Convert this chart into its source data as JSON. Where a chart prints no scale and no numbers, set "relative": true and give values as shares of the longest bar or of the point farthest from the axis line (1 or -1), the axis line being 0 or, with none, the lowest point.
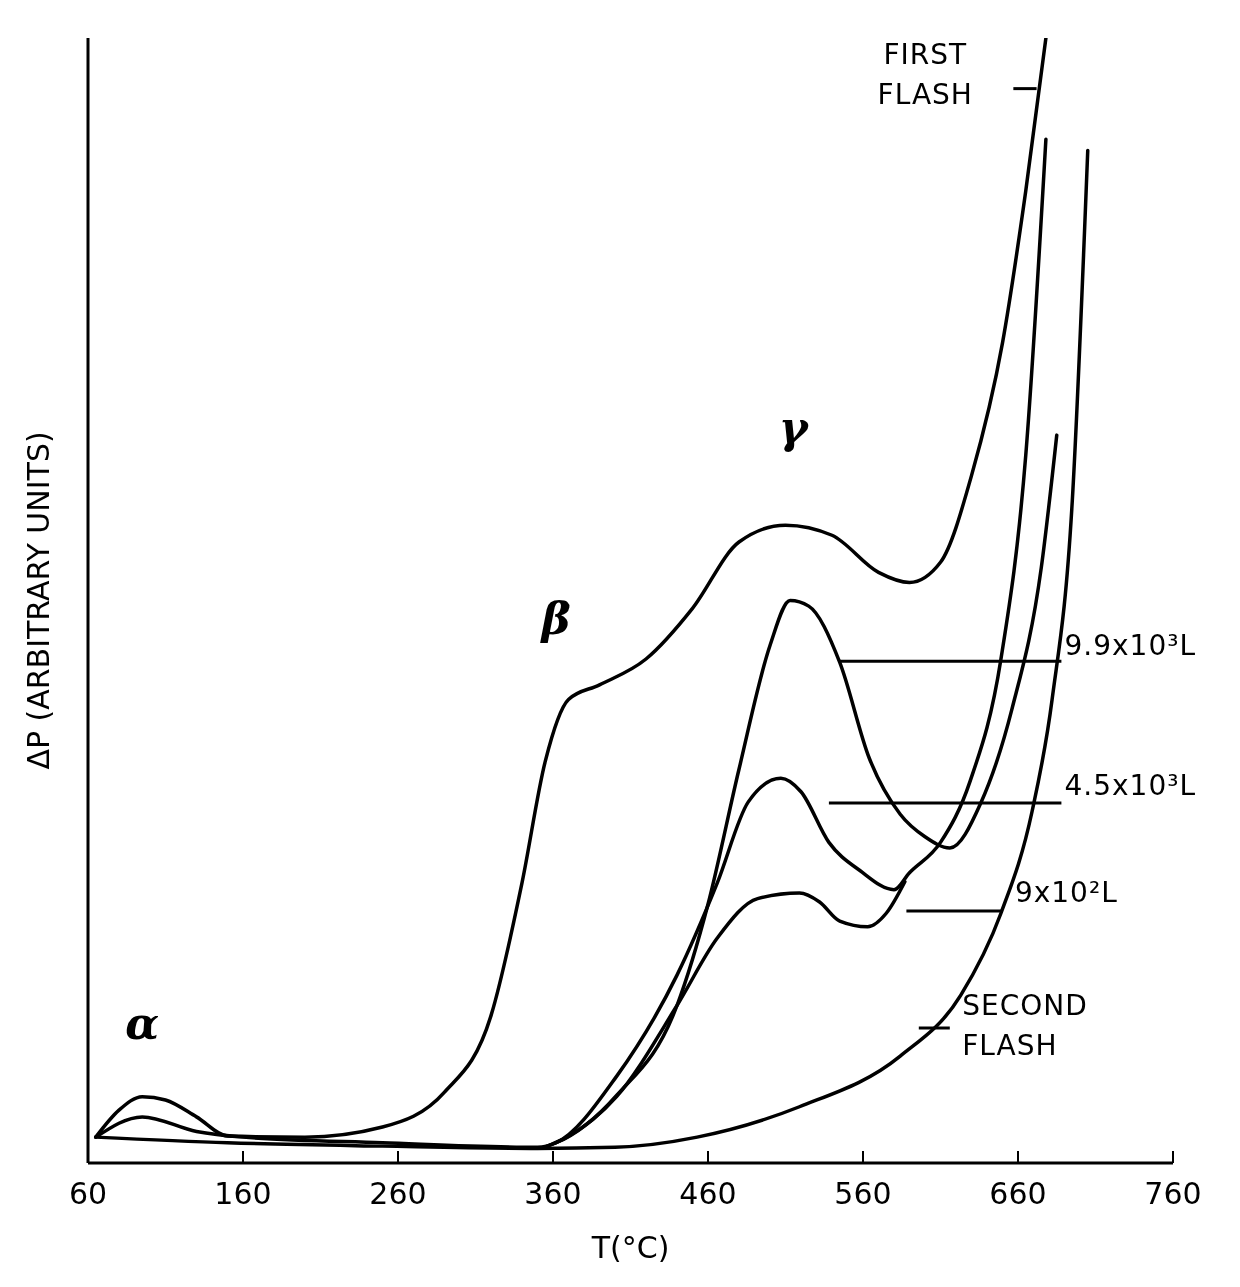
{
  "chart_data": {
    "type": "line",
    "relative": true,
    "xlabel": "T(°C)",
    "ylabel": "ΔP (ARBITRARY UNITS)",
    "xlim": [
      60,
      760
    ],
    "xticks": [
      60,
      160,
      260,
      360,
      460,
      560,
      660,
      760
    ],
    "marker": "none",
    "line_style": "solid",
    "legend": "right",
    "annotations": [
      "α",
      "β",
      "γ"
    ],
    "series": [
      {
        "name": "FIRST FLASH",
        "color": "#000000",
        "x": [
          65,
          80,
          95,
          110,
          130,
          150,
          200,
          250,
          290,
          320,
          340,
          355,
          370,
          390,
          420,
          450,
          480,
          510,
          540,
          570,
          590,
          610,
          630,
          650,
          665,
          678
        ],
        "values": [
          0.023,
          0.047,
          0.059,
          0.056,
          0.041,
          0.024,
          0.023,
          0.032,
          0.063,
          0.131,
          0.249,
          0.357,
          0.412,
          0.425,
          0.448,
          0.493,
          0.552,
          0.567,
          0.558,
          0.525,
          0.516,
          0.534,
          0.611,
          0.729,
          0.864,
          1
        ]
      },
      {
        "name": "9.9x10³L",
        "color": "#000000",
        "x": [
          356,
          362,
          401,
          440,
          460,
          480,
          500,
          513,
          525,
          545,
          564,
          584,
          600,
          616,
          636,
          656,
          675,
          685
        ],
        "values": [
          0.015,
          0.018,
          0.06,
          0.14,
          0.23,
          0.35,
          0.46,
          0.5,
          0.495,
          0.445,
          0.36,
          0.31,
          0.29,
          0.28,
          0.32,
          0.403,
          0.529,
          0.647
        ]
      },
      {
        "name": "4.5x10³L",
        "color": "#000000",
        "x": [
          65,
          95,
          130,
          160,
          250,
          350,
          362,
          401,
          440,
          466,
          486,
          507,
          520,
          538,
          558,
          580,
          590,
          610,
          629,
          649,
          665,
          678
        ],
        "values": [
          0.023,
          0.041,
          0.028,
          0.023,
          0.018,
          0.014,
          0.018,
          0.077,
          0.167,
          0.249,
          0.321,
          0.342,
          0.33,
          0.285,
          0.26,
          0.243,
          0.258,
          0.285,
          0.339,
          0.448,
          0.629,
          0.91
        ]
      },
      {
        "name": "9x10²L",
        "color": "#000000",
        "x": [
          358,
          369,
          401,
          440,
          466,
          492,
          519,
          532,
          545,
          563,
          575,
          587
        ],
        "values": [
          0.016,
          0.023,
          0.059,
          0.14,
          0.2,
          0.235,
          0.24,
          0.232,
          0.215,
          0.21,
          0.222,
          0.25
        ]
      },
      {
        "name": "SECOND FLASH",
        "color": "#000000",
        "x": [
          65,
          150,
          250,
          350,
          400,
          453,
          519,
          584,
          623,
          649,
          669,
          682,
          695,
          705
        ],
        "values": [
          0.023,
          0.018,
          0.015,
          0.013,
          0.014,
          0.023,
          0.05,
          0.095,
          0.149,
          0.222,
          0.312,
          0.412,
          0.588,
          0.9
        ]
      }
    ]
  }
}
